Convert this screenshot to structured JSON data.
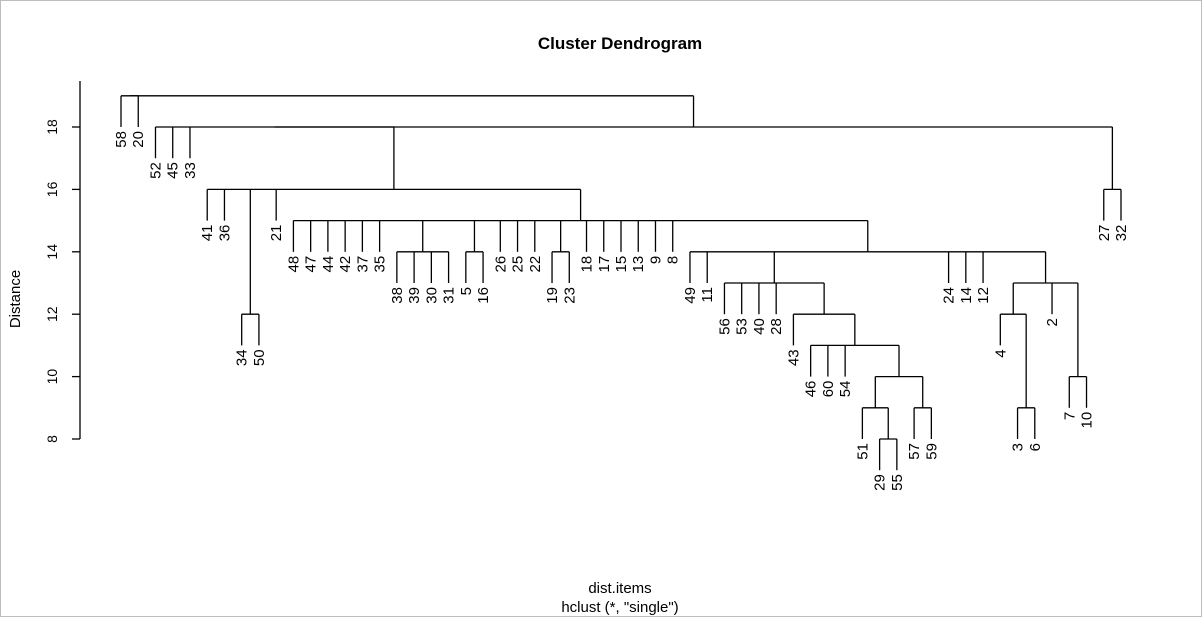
{
  "chart_data": {
    "type": "dendrogram",
    "title": "Cluster Dendrogram",
    "xlabel": "dist.items",
    "sublabel": "hclust (*, \"single\")",
    "ylabel": "Distance",
    "ylim": [
      8,
      19.1
    ],
    "y_ticks": [
      8,
      10,
      12,
      14,
      16,
      18
    ],
    "leaf_order": [
      "58",
      "20",
      "52",
      "45",
      "33",
      "41",
      "36",
      "34",
      "50",
      "21",
      "48",
      "47",
      "44",
      "42",
      "37",
      "35",
      "38",
      "39",
      "30",
      "31",
      "5",
      "16",
      "26",
      "25",
      "22",
      "19",
      "23",
      "18",
      "17",
      "15",
      "13",
      "9",
      "8",
      "49",
      "11",
      "56",
      "53",
      "40",
      "28",
      "43",
      "46",
      "60",
      "54",
      "51",
      "29",
      "55",
      "57",
      "59",
      "24",
      "14",
      "12",
      "4",
      "3",
      "6",
      "2",
      "7",
      "10",
      "27",
      "32"
    ],
    "tree": [
      [
        [
          "58",
          "20",
          19.0
        ],
        [
          [
            "52",
            "45",
            "33",
            [
              "41",
              "36",
              [
                "34",
                "50",
                12.0
              ],
              "21",
              [
                "48",
                "47",
                "44",
                "42",
                "37",
                "35",
                [
                  "38",
                  "39",
                  "30",
                  "31",
                  14.0
                ],
                [
                  "5",
                  "16",
                  14.0
                ],
                "26",
                "25",
                "22",
                [
                  "19",
                  "23",
                  14.0
                ],
                "18",
                "17",
                "15",
                "13",
                "9",
                "8",
                [
                  "49",
                  "11",
                  [
                    "56",
                    "53",
                    "40",
                    "28",
                    [
                      "43",
                      [
                        "46",
                        "60",
                        "54",
                        [
                          [
                            "51",
                            [
                              "29",
                              "55",
                              8.0
                            ],
                            9.0
                          ],
                          [
                            "57",
                            "59",
                            9.0
                          ],
                          10.0
                        ],
                        11.0
                      ],
                      12.0
                    ],
                    13.0
                  ],
                  "24",
                  "14",
                  "12",
                  [
                    [
                      "4",
                      [
                        "3",
                        "6",
                        9.0
                      ],
                      12.0
                    ],
                    "2",
                    [
                      "7",
                      "10",
                      10.0
                    ],
                    13.0
                  ],
                  14.0
                ],
                15.0
              ],
              16.0
            ],
            18.0
          ],
          [
            "27",
            "32",
            16.0
          ],
          18.0
        ],
        19.0
      ]
    ]
  }
}
